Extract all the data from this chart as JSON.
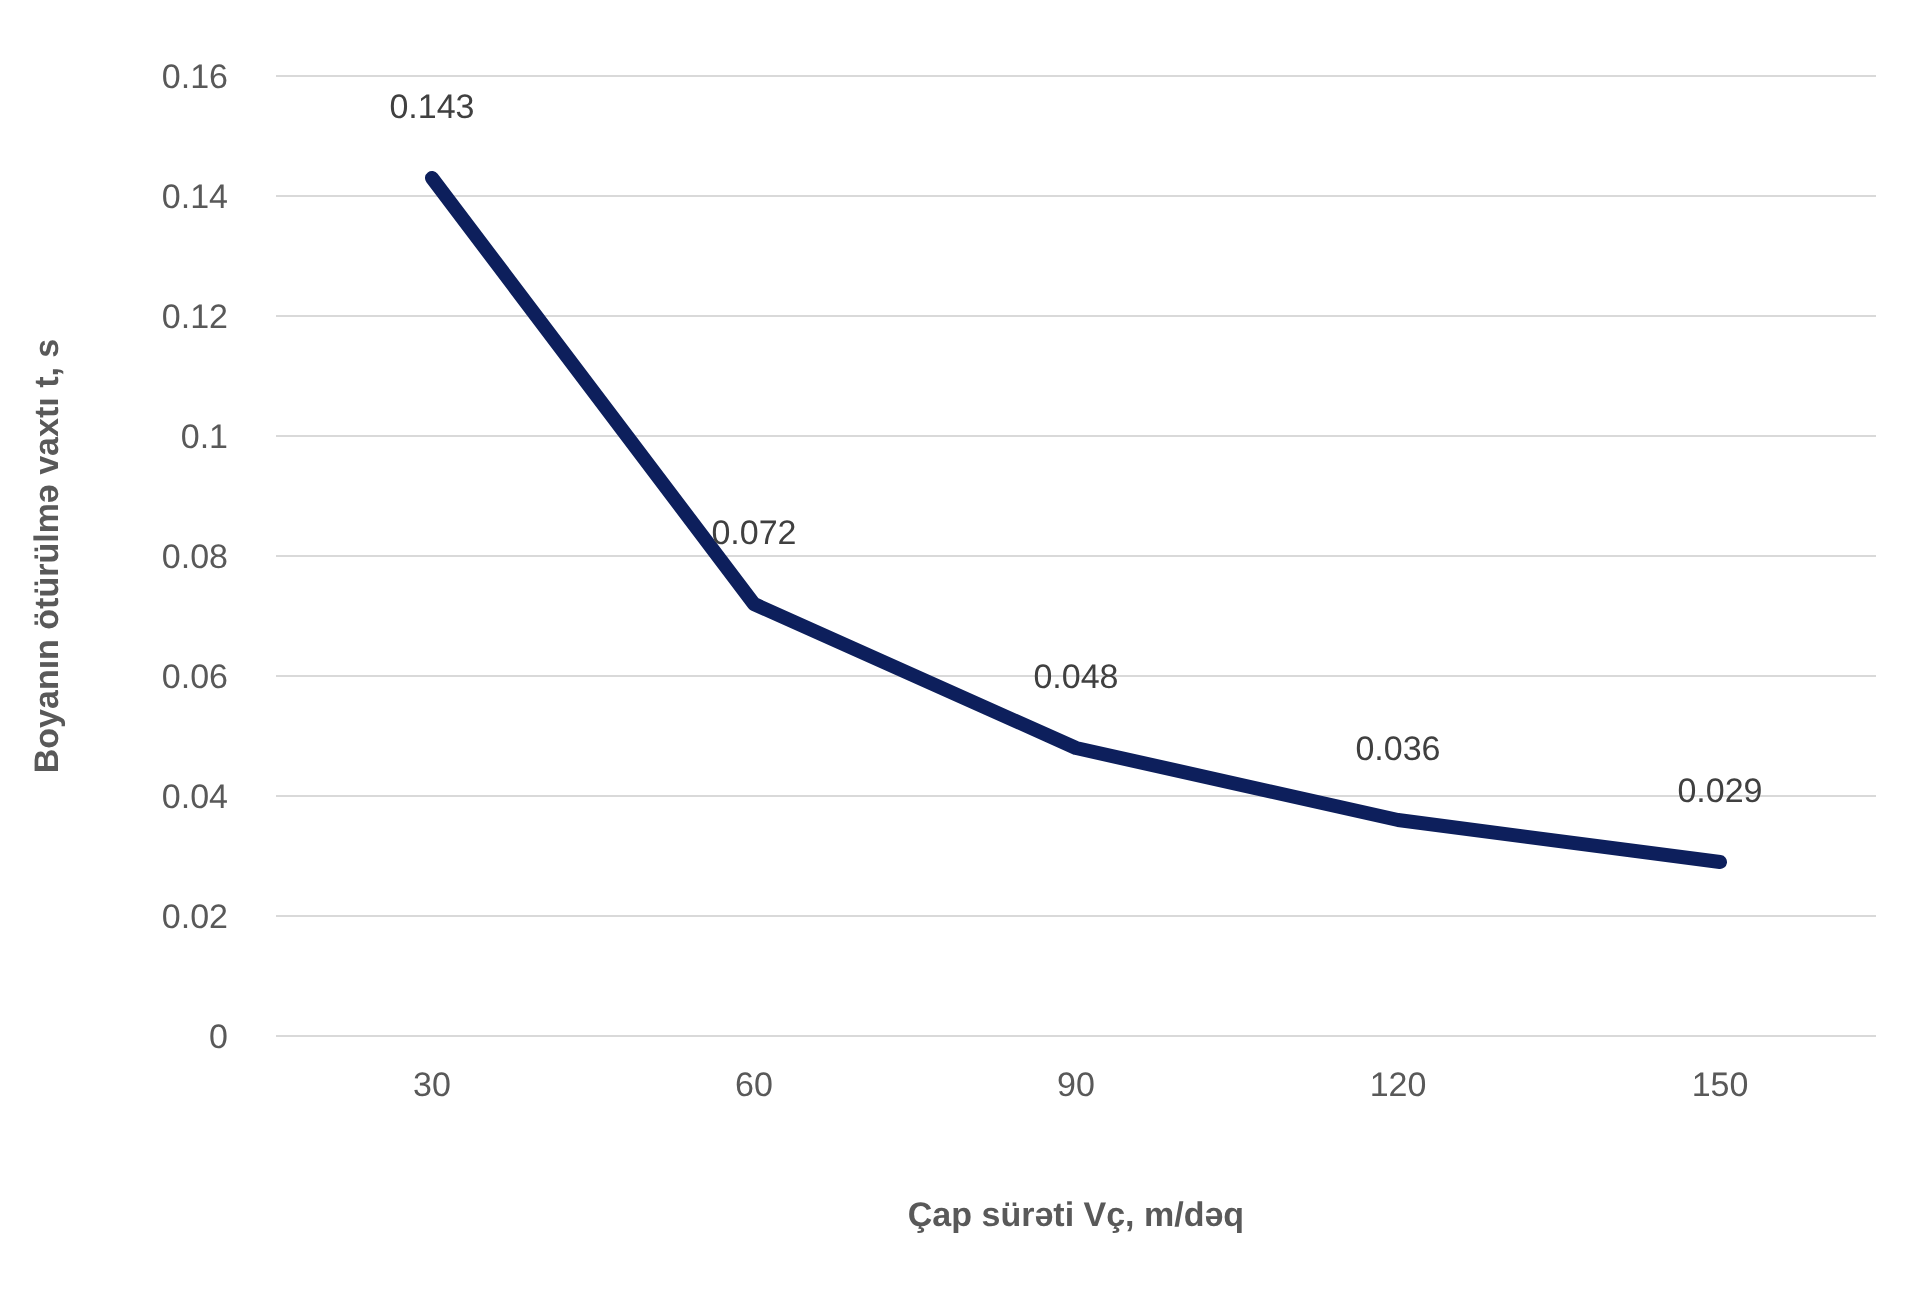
{
  "chart_data": {
    "type": "line",
    "xlabel": "Çap sürəti Vç, m/dəq",
    "ylabel": "Boyanın ötürülmə vaxtı t, s",
    "categories": [
      "30",
      "60",
      "90",
      "120",
      "150"
    ],
    "series": [
      {
        "color": "#0d1f5c",
        "values": [
          0.143,
          0.072,
          0.048,
          0.036,
          0.029
        ]
      }
    ],
    "ylim": [
      0,
      0.16
    ],
    "yticks": [
      0,
      0.02,
      0.04,
      0.06,
      0.08,
      0.1,
      0.12,
      0.14,
      0.16
    ],
    "grid": "y",
    "data_labels": true,
    "marker": "none",
    "line_style": "solid",
    "legend": false
  }
}
